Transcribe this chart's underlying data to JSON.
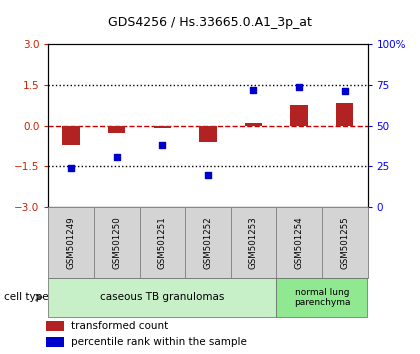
{
  "title": "GDS4256 / Hs.33665.0.A1_3p_at",
  "samples": [
    "GSM501249",
    "GSM501250",
    "GSM501251",
    "GSM501252",
    "GSM501253",
    "GSM501254",
    "GSM501255"
  ],
  "transformed_count": [
    -0.7,
    -0.28,
    -0.07,
    -0.6,
    0.1,
    0.75,
    0.85
  ],
  "percentile_rank": [
    24,
    31,
    38,
    20,
    72,
    74,
    71
  ],
  "left_ylim": [
    -3,
    3
  ],
  "right_ylim": [
    0,
    100
  ],
  "left_yticks": [
    -3,
    -1.5,
    0,
    1.5,
    3
  ],
  "right_yticks": [
    0,
    25,
    50,
    75,
    100
  ],
  "right_yticklabels": [
    "0",
    "25",
    "50",
    "75",
    "100%"
  ],
  "bar_color": "#b22222",
  "dot_color": "#0000cc",
  "hline_color": "#cc0000",
  "dotted_line_color": "#000000",
  "cell_groups": [
    {
      "label": "caseous TB granulomas",
      "n_samples": 5,
      "color": "#c8f0c8"
    },
    {
      "label": "normal lung\nparenchyma",
      "n_samples": 2,
      "color": "#90e890"
    }
  ],
  "cell_type_label": "cell type",
  "legend_items": [
    {
      "color": "#b22222",
      "label": "transformed count"
    },
    {
      "color": "#0000cc",
      "label": "percentile rank within the sample"
    }
  ],
  "sample_box_color": "#d4d4d4",
  "sample_box_edge": "#888888"
}
